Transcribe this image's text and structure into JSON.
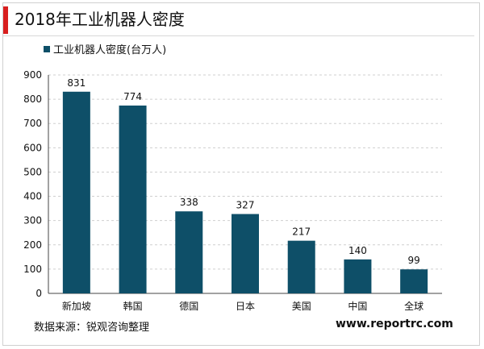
{
  "header": {
    "title": "2018年工业机器人密度"
  },
  "footer": {
    "source": "数据来源：锐观咨询整理",
    "website": "www.reportrc.com"
  },
  "colors": {
    "bar": "#0e4f68",
    "accent": "#d81e1e",
    "grid": "#cfcfcf"
  },
  "chart_data": {
    "type": "bar",
    "title": "2018年工业机器人密度",
    "xlabel": "",
    "ylabel": "",
    "categories": [
      "新加坡",
      "韩国",
      "德国",
      "日本",
      "美国",
      "中国",
      "全球"
    ],
    "series": [
      {
        "name": "工业机器人密度(台万人)",
        "values": [
          831,
          774,
          338,
          327,
          217,
          140,
          99
        ]
      }
    ],
    "ylim": [
      0,
      900
    ],
    "yticks": [
      0,
      100,
      200,
      300,
      400,
      500,
      600,
      700,
      800,
      900
    ],
    "grid": true,
    "legend_position": "top-left",
    "data_labels": true
  }
}
